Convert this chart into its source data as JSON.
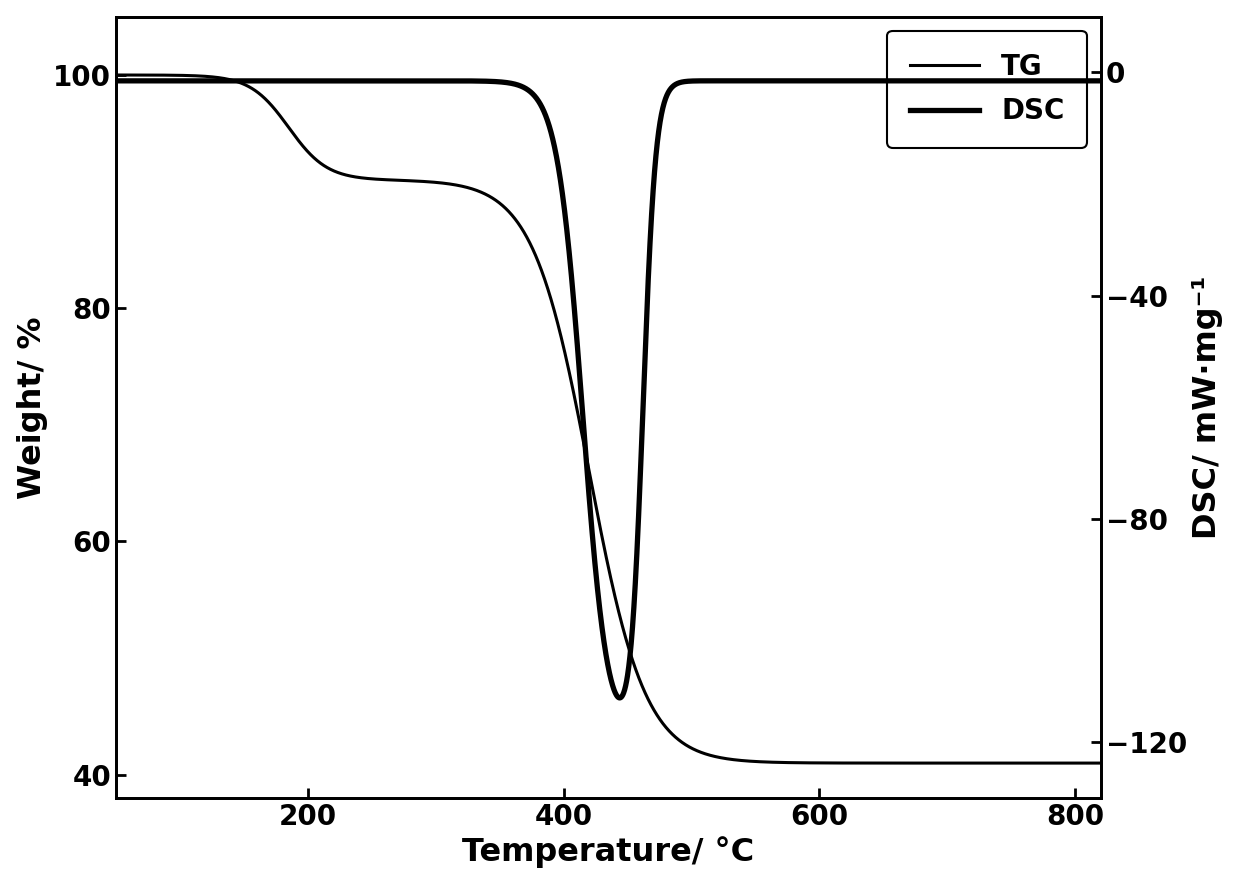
{
  "title": "",
  "xlabel": "Temperature/ °C",
  "ylabel_left": "Weight/ %",
  "ylabel_right": "DSC/ mW·mg⁻¹",
  "xlim": [
    50,
    820
  ],
  "ylim_left": [
    38,
    105
  ],
  "ylim_right": [
    -130,
    10
  ],
  "xticks": [
    200,
    400,
    600,
    800
  ],
  "yticks_left": [
    40,
    60,
    80,
    100
  ],
  "yticks_right": [
    -120,
    -80,
    -40,
    0
  ],
  "legend_labels": [
    "TG",
    "DSC"
  ],
  "tg_lw": 2.2,
  "dsc_lw": 3.8,
  "line_color": "#000000",
  "background_color": "#ffffff",
  "font_size_ticks": 20,
  "font_size_labels": 23,
  "font_size_legend": 20
}
